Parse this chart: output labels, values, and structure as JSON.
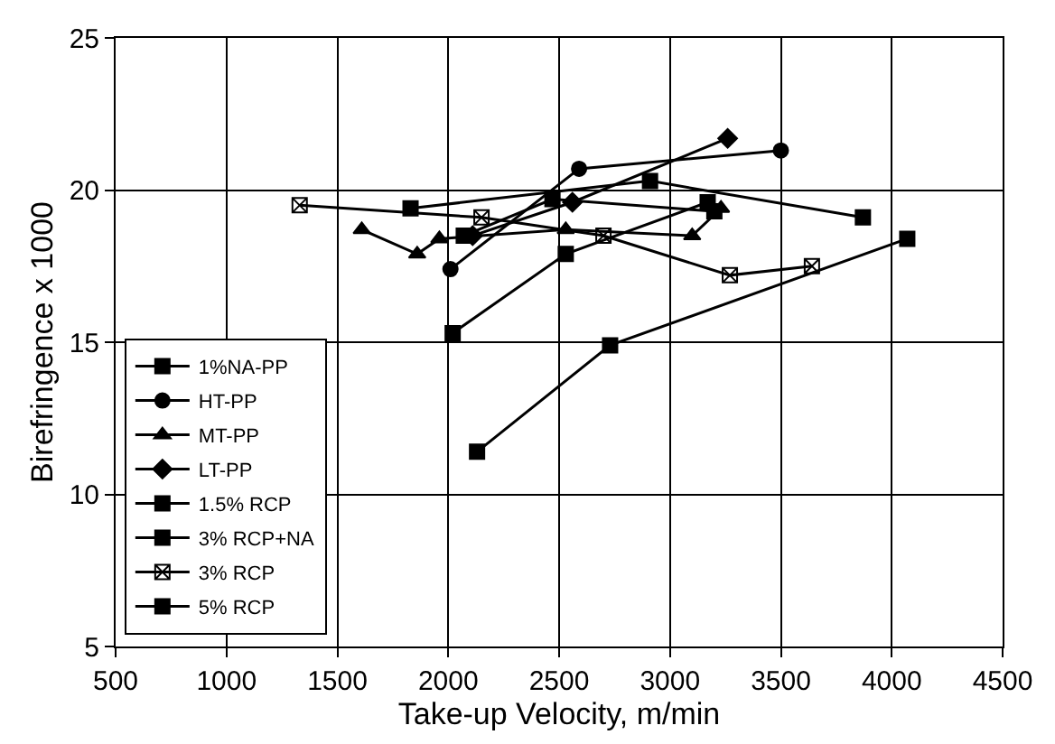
{
  "chart_data": {
    "type": "line",
    "xlabel": "Take-up Velocity, m/min",
    "ylabel": "Birefringence x 1000",
    "xlim": [
      500,
      4500
    ],
    "xticks": [
      500,
      1000,
      1500,
      2000,
      2500,
      3000,
      3500,
      4000,
      4500
    ],
    "ylim": [
      5,
      25
    ],
    "yticks": [
      5,
      10,
      15,
      20,
      25
    ],
    "grid": true,
    "legend": "bottom left",
    "line_style": "solid",
    "series": [
      {
        "name": "1%NA-PP",
        "color": "#000000",
        "marker": "square",
        "x": [
          2130,
          2730,
          4070
        ],
        "values": [
          11.4,
          14.9,
          18.4
        ]
      },
      {
        "name": "HT-PP",
        "color": "#000000",
        "marker": "circle",
        "x": [
          2010,
          2590,
          3500
        ],
        "values": [
          17.4,
          20.7,
          21.3
        ]
      },
      {
        "name": "MT-PP",
        "color": "#000000",
        "marker": "triangle",
        "x": [
          1610,
          1860,
          1960,
          2530,
          3100,
          3230
        ],
        "values": [
          18.7,
          17.9,
          18.4,
          18.7,
          18.5,
          19.4
        ]
      },
      {
        "name": "LT-PP",
        "color": "#000000",
        "marker": "diamond",
        "x": [
          2110,
          2560,
          3260
        ],
        "values": [
          18.5,
          19.6,
          21.7
        ]
      },
      {
        "name": "1.5% RCP",
        "color": "#000000",
        "marker": "square",
        "x": [
          2070,
          2470,
          3200
        ],
        "values": [
          18.5,
          19.7,
          19.3
        ]
      },
      {
        "name": "3% RCP+NA",
        "color": "#000000",
        "marker": "square",
        "x": [
          1830,
          2910,
          3870
        ],
        "values": [
          19.4,
          20.3,
          19.1
        ]
      },
      {
        "name": "3% RCP",
        "color": "#000000",
        "marker": "cross",
        "x": [
          1330,
          2150,
          2700,
          3270,
          3640
        ],
        "values": [
          19.5,
          19.1,
          18.5,
          17.2,
          17.5
        ]
      },
      {
        "name": "5% RCP",
        "color": "#000000",
        "marker": "square",
        "x": [
          2020,
          2530,
          3170
        ],
        "values": [
          15.3,
          17.9,
          19.6
        ]
      }
    ]
  }
}
